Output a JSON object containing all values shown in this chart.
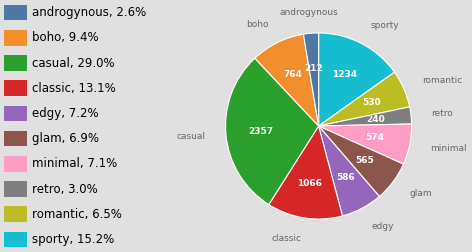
{
  "legend_labels": [
    "androgynous",
    "boho",
    "casual",
    "classic",
    "edgy",
    "glam",
    "minimal",
    "retro",
    "romantic",
    "sporty"
  ],
  "legend_percentages": [
    2.6,
    9.4,
    29.0,
    13.1,
    7.2,
    6.9,
    7.1,
    3.0,
    6.5,
    15.2
  ],
  "legend_colors": [
    "#4e79a7",
    "#f28e2b",
    "#2ca02c",
    "#d62728",
    "#9467bd",
    "#8c564b",
    "#ff9dc6",
    "#7f7f7f",
    "#bcbd22",
    "#17becf"
  ],
  "pie_order_labels": [
    "sporty",
    "romantic",
    "retro",
    "minimal",
    "glam",
    "edgy",
    "classic",
    "casual",
    "boho",
    "androgynous"
  ],
  "pie_order_values": [
    1234,
    530,
    240,
    574,
    565,
    586,
    1066,
    2357,
    764,
    212
  ],
  "pie_order_colors": [
    "#17becf",
    "#bcbd22",
    "#7f7f7f",
    "#ff9dc6",
    "#8c564b",
    "#9467bd",
    "#d62728",
    "#2ca02c",
    "#f28e2b",
    "#4e79a7"
  ],
  "background_color": "#e0e0e0",
  "text_color": "#666666",
  "fontsize_legend": 8.5,
  "fontsize_pie_labels": 6.5,
  "fontsize_values": 6.5
}
